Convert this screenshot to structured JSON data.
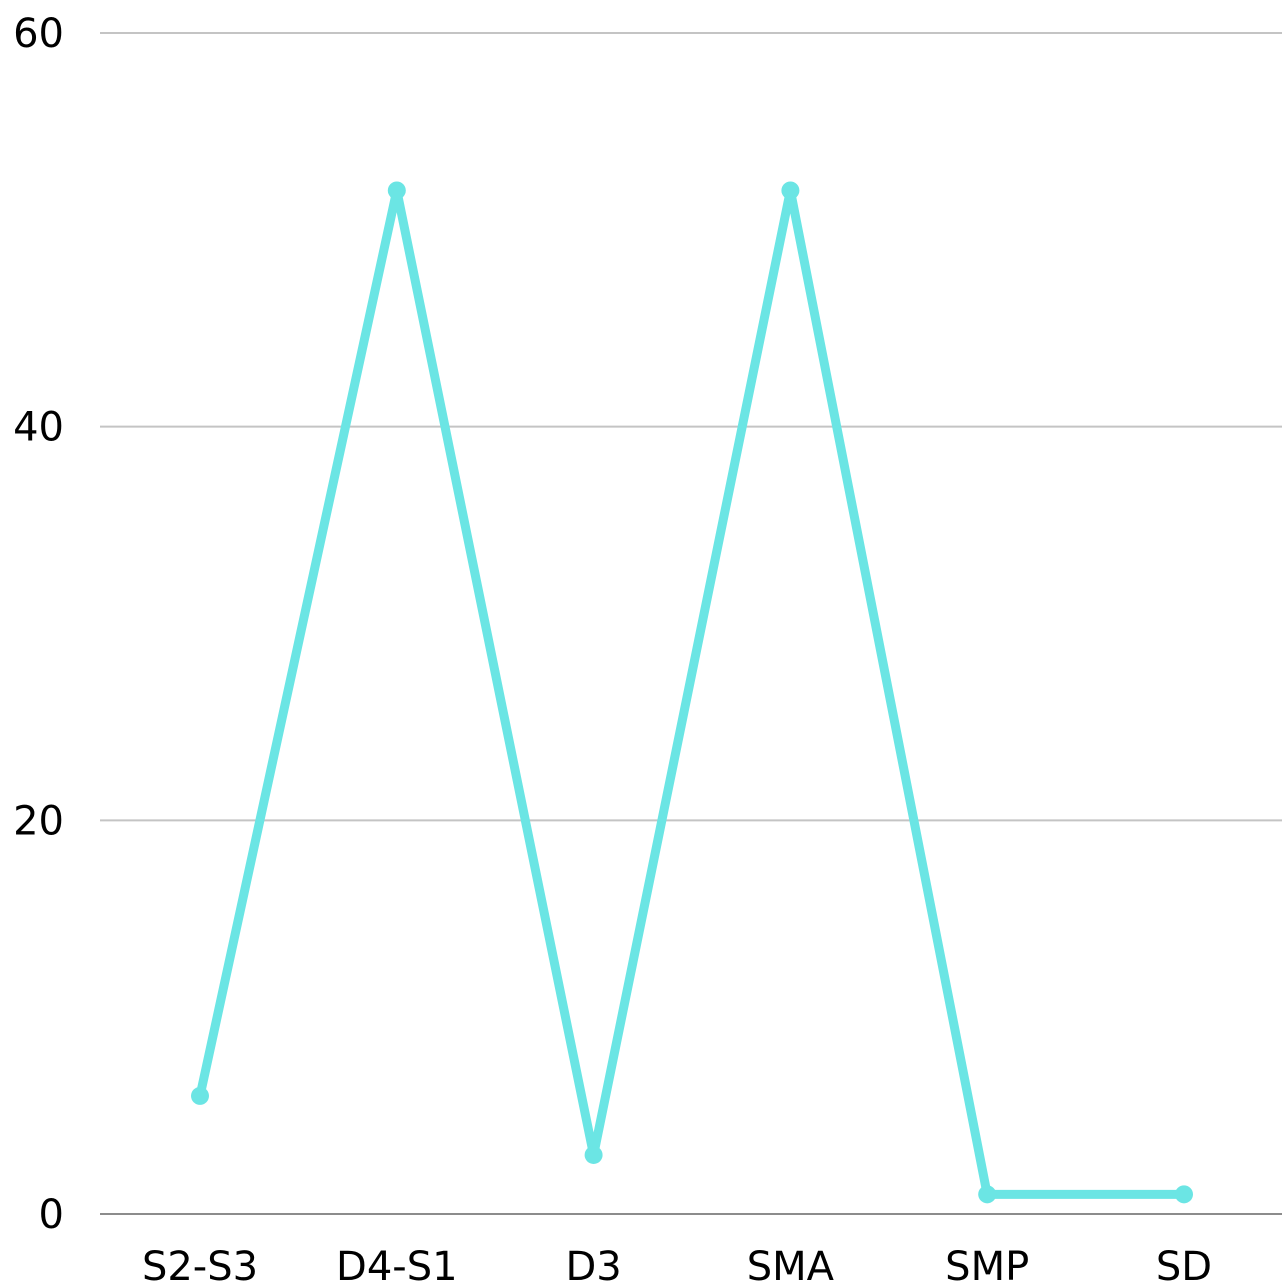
{
  "chart_data": {
    "type": "line",
    "title": "",
    "xlabel": "",
    "ylabel": "",
    "categories": [
      "S2-S3",
      "D4-S1",
      "D3",
      "SMA",
      "SMP",
      "SD"
    ],
    "series": [
      {
        "values": [
          6,
          52,
          3,
          52,
          1,
          1
        ],
        "color": "#6be5e4"
      }
    ],
    "ylim": [
      0,
      60
    ],
    "yticks": [
      0,
      20,
      40,
      60
    ],
    "grid": true,
    "legend": "none"
  }
}
